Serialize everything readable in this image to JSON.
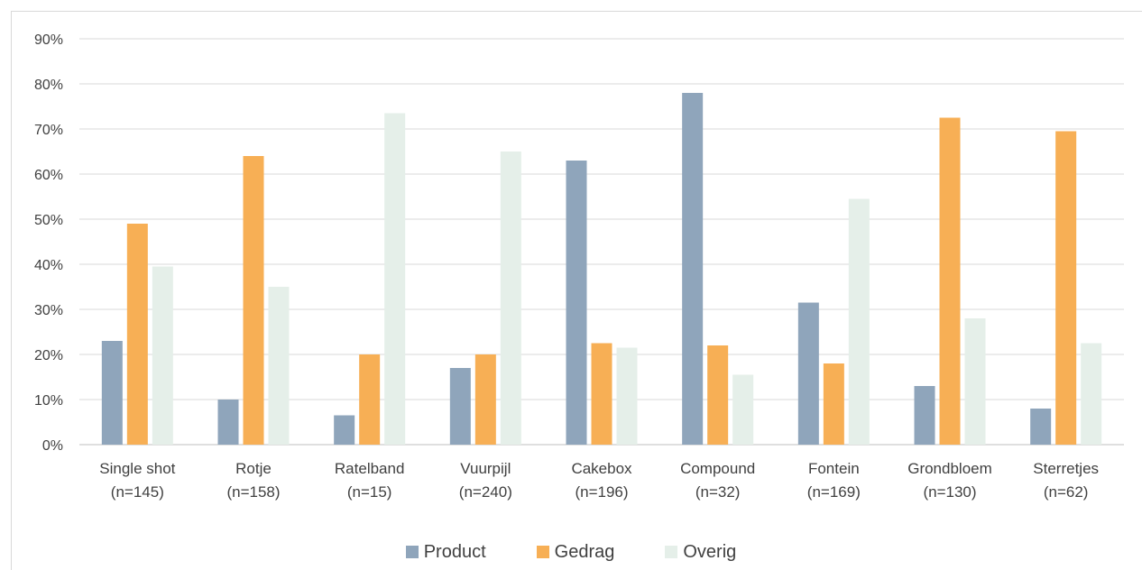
{
  "chart_data": {
    "type": "bar",
    "categories": [
      [
        "Single shot",
        "(n=145)"
      ],
      [
        "Rotje",
        "(n=158)"
      ],
      [
        "Ratelband",
        "(n=15)"
      ],
      [
        "Vuurpijl",
        "(n=240)"
      ],
      [
        "Cakebox",
        "(n=196)"
      ],
      [
        "Compound",
        "(n=32)"
      ],
      [
        "Fontein",
        "(n=169)"
      ],
      [
        "Grondbloem",
        "(n=130)"
      ],
      [
        "Sterretjes",
        "(n=62)"
      ]
    ],
    "series": [
      {
        "name": "Product",
        "color": "#8fa5bb",
        "values": [
          23,
          10,
          6.5,
          17,
          63,
          78,
          31.5,
          13,
          8
        ]
      },
      {
        "name": "Gedrag",
        "color": "#f7af55",
        "values": [
          49,
          64,
          20,
          20,
          22.5,
          22,
          18,
          72.5,
          69.5
        ]
      },
      {
        "name": "Overig",
        "color": "#e5efe9",
        "values": [
          39.5,
          35,
          73.5,
          65,
          21.5,
          15.5,
          54.5,
          28,
          22.5
        ]
      }
    ],
    "yticks": [
      "0%",
      "10%",
      "20%",
      "30%",
      "40%",
      "50%",
      "60%",
      "70%",
      "80%",
      "90%"
    ],
    "ylim": [
      0,
      90
    ],
    "grid": true,
    "legend_position": "bottom"
  }
}
